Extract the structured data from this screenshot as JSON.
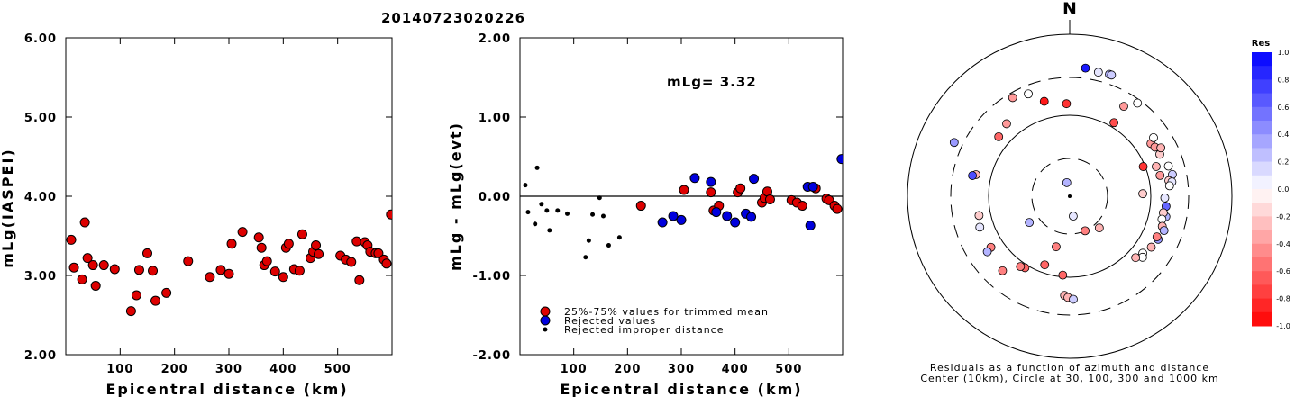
{
  "title": "20140723020226",
  "chart_data": [
    {
      "type": "scatter",
      "xlabel": "Epicentral distance (km)",
      "ylabel": "mLg(IASPEI)",
      "xlim": [
        0,
        600
      ],
      "ylim": [
        2.0,
        6.0
      ],
      "xticks": [
        100,
        200,
        300,
        400,
        500
      ],
      "yticks": [
        "2.00",
        "3.00",
        "4.00",
        "5.00",
        "6.00"
      ],
      "series": [
        {
          "color": "#dd0000",
          "points": [
            [
              10,
              3.45
            ],
            [
              15,
              3.1
            ],
            [
              30,
              2.95
            ],
            [
              35,
              3.67
            ],
            [
              40,
              3.22
            ],
            [
              50,
              3.13
            ],
            [
              55,
              2.87
            ],
            [
              70,
              3.13
            ],
            [
              90,
              3.08
            ],
            [
              120,
              2.55
            ],
            [
              130,
              2.75
            ],
            [
              135,
              3.07
            ],
            [
              150,
              3.28
            ],
            [
              160,
              3.06
            ],
            [
              165,
              2.68
            ],
            [
              185,
              2.78
            ],
            [
              225,
              3.18
            ],
            [
              265,
              2.98
            ],
            [
              285,
              3.07
            ],
            [
              300,
              3.02
            ],
            [
              305,
              3.4
            ],
            [
              325,
              3.55
            ],
            [
              355,
              3.48
            ],
            [
              360,
              3.35
            ],
            [
              365,
              3.13
            ],
            [
              370,
              3.18
            ],
            [
              385,
              3.05
            ],
            [
              400,
              2.98
            ],
            [
              405,
              3.35
            ],
            [
              410,
              3.4
            ],
            [
              420,
              3.08
            ],
            [
              430,
              3.06
            ],
            [
              435,
              3.52
            ],
            [
              450,
              3.22
            ],
            [
              455,
              3.3
            ],
            [
              460,
              3.38
            ],
            [
              465,
              3.27
            ],
            [
              505,
              3.25
            ],
            [
              515,
              3.2
            ],
            [
              525,
              3.17
            ],
            [
              535,
              3.43
            ],
            [
              540,
              2.94
            ],
            [
              550,
              3.42
            ],
            [
              555,
              3.38
            ],
            [
              560,
              3.3
            ],
            [
              570,
              3.28
            ],
            [
              575,
              3.28
            ],
            [
              585,
              3.2
            ],
            [
              590,
              3.15
            ],
            [
              598,
              3.77
            ]
          ]
        }
      ]
    },
    {
      "type": "scatter",
      "xlabel": "Epicentral distance (km)",
      "ylabel": "mLg - mLg(evt)",
      "xlim": [
        0,
        600
      ],
      "ylim": [
        -2.0,
        2.0
      ],
      "xticks": [
        100,
        200,
        300,
        400,
        500
      ],
      "yticks": [
        "-2.00",
        "-1.00",
        "0.00",
        "1.00",
        "2.00"
      ],
      "annotation": "mLg= 3.32",
      "zero_line": true,
      "series": [
        {
          "name": "25%-75% values for trimmed mean",
          "color": "#dd0000",
          "points": [
            [
              225,
              -0.12
            ],
            [
              305,
              0.08
            ],
            [
              355,
              0.05
            ],
            [
              360,
              -0.18
            ],
            [
              370,
              -0.12
            ],
            [
              405,
              0.05
            ],
            [
              410,
              0.1
            ],
            [
              450,
              -0.08
            ],
            [
              455,
              -0.02
            ],
            [
              460,
              0.06
            ],
            [
              465,
              -0.04
            ],
            [
              505,
              -0.05
            ],
            [
              515,
              -0.08
            ],
            [
              525,
              -0.12
            ],
            [
              550,
              0.1
            ],
            [
              570,
              -0.03
            ],
            [
              575,
              -0.05
            ],
            [
              585,
              -0.12
            ],
            [
              590,
              -0.16
            ]
          ]
        },
        {
          "name": "Rejected values",
          "color": "#0000dd",
          "points": [
            [
              265,
              -0.33
            ],
            [
              285,
              -0.25
            ],
            [
              300,
              -0.3
            ],
            [
              325,
              0.23
            ],
            [
              355,
              0.18
            ],
            [
              365,
              -0.2
            ],
            [
              385,
              -0.25
            ],
            [
              400,
              -0.33
            ],
            [
              420,
              -0.22
            ],
            [
              430,
              -0.26
            ],
            [
              435,
              0.22
            ],
            [
              535,
              0.12
            ],
            [
              540,
              -0.37
            ],
            [
              545,
              0.12
            ],
            [
              598,
              0.47
            ]
          ]
        },
        {
          "name": "Rejected improper distance",
          "color": "#000000",
          "points": [
            [
              10,
              0.14
            ],
            [
              15,
              -0.2
            ],
            [
              28,
              -0.35
            ],
            [
              32,
              0.36
            ],
            [
              40,
              -0.1
            ],
            [
              50,
              -0.18
            ],
            [
              55,
              -0.43
            ],
            [
              70,
              -0.18
            ],
            [
              88,
              -0.22
            ],
            [
              122,
              -0.77
            ],
            [
              128,
              -0.56
            ],
            [
              135,
              -0.23
            ],
            [
              148,
              -0.02
            ],
            [
              155,
              -0.25
            ],
            [
              165,
              -0.62
            ],
            [
              185,
              -0.52
            ]
          ]
        }
      ]
    },
    {
      "type": "polar-scatter",
      "north_label": "N",
      "caption_line1": "Residuals as a function of azimuth and distance",
      "caption_line2": "Center (10km), Circle at 30, 100, 300 and 1000 km",
      "circles_km": [
        30,
        100,
        300,
        1000
      ],
      "colorbar_title": "Res",
      "colorbar_ticks": [
        "1.0",
        "0.8",
        "0.6",
        "0.4",
        "0.2",
        "0.0",
        "-0.2",
        "-0.4",
        "-0.6",
        "-0.8",
        "-1.0"
      ],
      "colorbar_range": [
        -1.0,
        1.0
      ],
      "points": [
        {
          "az": 7,
          "dist_km": 400,
          "res": 0.9
        },
        {
          "az": 13,
          "dist_km": 380,
          "res": 0.1
        },
        {
          "az": 18,
          "dist_km": 390,
          "res": 0.3
        },
        {
          "az": 19,
          "dist_km": 390,
          "res": 0.2
        },
        {
          "az": 330,
          "dist_km": 260,
          "res": -0.4
        },
        {
          "az": 338,
          "dist_km": 235,
          "res": 0.0
        },
        {
          "az": 345,
          "dist_km": 165,
          "res": -0.9
        },
        {
          "az": 358,
          "dist_km": 140,
          "res": -0.8
        },
        {
          "az": 319,
          "dist_km": 155,
          "res": -0.4
        },
        {
          "az": 310,
          "dist_km": 140,
          "res": -0.6
        },
        {
          "az": 295,
          "dist_km": 380,
          "res": 0.4
        },
        {
          "az": 283,
          "dist_km": 155,
          "res": -0.3
        },
        {
          "az": 31,
          "dist_km": 200,
          "res": -0.4
        },
        {
          "az": 36,
          "dist_km": 270,
          "res": 0.0
        },
        {
          "az": 31,
          "dist_km": 115,
          "res": -0.7
        },
        {
          "az": 57,
          "dist_km": 158,
          "res": -0.4
        },
        {
          "az": 55,
          "dist_km": 185,
          "res": 0.0
        },
        {
          "az": 60,
          "dist_km": 165,
          "res": -0.4
        },
        {
          "az": 65,
          "dist_km": 170,
          "res": -0.2
        },
        {
          "az": 62,
          "dist_km": 190,
          "res": -0.3
        },
        {
          "az": 68,
          "dist_km": 95,
          "res": -0.8
        },
        {
          "az": 71,
          "dist_km": 135,
          "res": -0.3
        },
        {
          "az": 73,
          "dist_km": 190,
          "res": 0.0
        },
        {
          "az": 77,
          "dist_km": 140,
          "res": -0.4
        },
        {
          "az": 78,
          "dist_km": 200,
          "res": 0.2
        },
        {
          "az": 81,
          "dist_km": 175,
          "res": -0.2
        },
        {
          "az": 82,
          "dist_km": 190,
          "res": 0.1
        },
        {
          "az": 84,
          "dist_km": 175,
          "res": 0.0
        },
        {
          "az": 88,
          "dist_km": 80,
          "res": -0.2
        },
        {
          "az": 91,
          "dist_km": 150,
          "res": 0.1
        },
        {
          "az": 96,
          "dist_km": 158,
          "res": 0.6
        },
        {
          "az": 102,
          "dist_km": 165,
          "res": 0.3
        },
        {
          "az": 100,
          "dist_km": 150,
          "res": -0.2
        },
        {
          "az": 104,
          "dist_km": 150,
          "res": 0.0
        },
        {
          "az": 108,
          "dist_km": 160,
          "res": -0.3
        },
        {
          "az": 110,
          "dist_km": 175,
          "res": 0.3
        },
        {
          "az": 116,
          "dist_km": 165,
          "res": 0.4
        },
        {
          "az": 115,
          "dist_km": 155,
          "res": -0.5
        },
        {
          "az": 122,
          "dist_km": 155,
          "res": -0.3
        },
        {
          "az": 128,
          "dist_km": 140,
          "res": 0.0
        },
        {
          "az": 130,
          "dist_km": 150,
          "res": 0.0
        },
        {
          "az": 133,
          "dist_km": 130,
          "res": -0.3
        },
        {
          "az": 137,
          "dist_km": 35,
          "res": -0.3
        },
        {
          "az": 156,
          "dist_km": 30,
          "res": -0.5
        },
        {
          "az": 195,
          "dist_km": 45,
          "res": -0.5
        },
        {
          "az": 185,
          "dist_km": 95,
          "res": -0.6
        },
        {
          "az": 200,
          "dist_km": 80,
          "res": -0.6
        },
        {
          "az": 237,
          "dist_km": 40,
          "res": 0.3
        },
        {
          "az": 348,
          "dist_km": 15,
          "res": 0.3
        },
        {
          "az": 170,
          "dist_km": 18,
          "res": 0.1
        },
        {
          "az": 183,
          "dist_km": 170,
          "res": -0.3
        },
        {
          "az": 181,
          "dist_km": 180,
          "res": -0.3
        },
        {
          "az": 178,
          "dist_km": 190,
          "res": 0.2
        },
        {
          "az": 212,
          "dist_km": 110,
          "res": -0.6
        },
        {
          "az": 215,
          "dist_km": 115,
          "res": -0.5
        },
        {
          "az": 222,
          "dist_km": 175,
          "res": -0.5
        },
        {
          "az": 237,
          "dist_km": 145,
          "res": -0.5
        },
        {
          "az": 236,
          "dist_km": 170,
          "res": 0.3
        },
        {
          "az": 251,
          "dist_km": 150,
          "res": 0.1
        },
        {
          "az": 258,
          "dist_km": 140,
          "res": -0.2
        },
        {
          "az": 282,
          "dist_km": 170,
          "res": 0.7
        }
      ]
    }
  ]
}
